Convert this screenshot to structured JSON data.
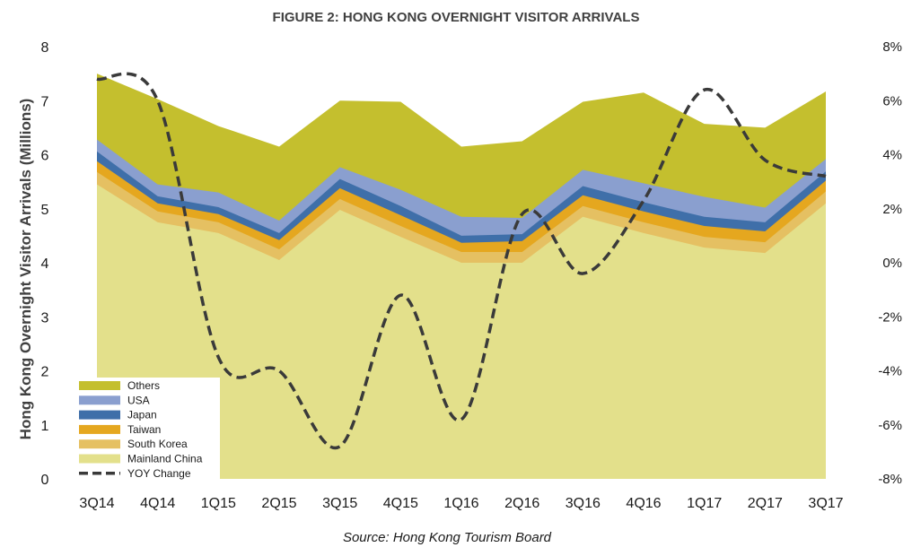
{
  "chart_data": {
    "type": "area",
    "title": "FIGURE 2: HONG KONG OVERNIGHT VISITOR ARRIVALS",
    "ylabel": "Hong Kong Overnight Visitor Arrivals (Millions)",
    "source": "Source: Hong Kong Tourism Board",
    "categories": [
      "3Q14",
      "4Q14",
      "1Q15",
      "2Q15",
      "3Q15",
      "4Q15",
      "1Q16",
      "2Q16",
      "3Q16",
      "4Q16",
      "1Q17",
      "2Q17",
      "3Q17"
    ],
    "ylim": [
      0,
      8
    ],
    "y_ticks": [
      "0",
      "1",
      "2",
      "3",
      "4",
      "5",
      "6",
      "7",
      "8"
    ],
    "y2lim": [
      -8,
      8
    ],
    "y2_ticks": [
      "-8%",
      "-6%",
      "-4%",
      "-2%",
      "0%",
      "2%",
      "4%",
      "6%",
      "8%"
    ],
    "stacking": "cumulative",
    "series": [
      {
        "name": "Mainland China",
        "color": "#e3e08b",
        "values": [
          5.45,
          4.75,
          4.55,
          4.05,
          4.98,
          4.48,
          4.0,
          4.0,
          4.85,
          4.55,
          4.28,
          4.18,
          5.1
        ]
      },
      {
        "name": "South Korea",
        "color": "#e5c062",
        "values": [
          0.23,
          0.2,
          0.2,
          0.2,
          0.2,
          0.2,
          0.2,
          0.2,
          0.2,
          0.2,
          0.2,
          0.2,
          0.22
        ]
      },
      {
        "name": "Taiwan",
        "color": "#e5a71f",
        "values": [
          0.2,
          0.15,
          0.15,
          0.17,
          0.2,
          0.2,
          0.17,
          0.2,
          0.2,
          0.2,
          0.2,
          0.2,
          0.2
        ]
      },
      {
        "name": "Japan",
        "color": "#3f6fa9",
        "values": [
          0.18,
          0.13,
          0.13,
          0.13,
          0.17,
          0.17,
          0.13,
          0.13,
          0.17,
          0.17,
          0.17,
          0.17,
          0.17
        ]
      },
      {
        "name": "USA",
        "color": "#8a9fcf",
        "values": [
          0.22,
          0.22,
          0.27,
          0.23,
          0.22,
          0.3,
          0.35,
          0.3,
          0.3,
          0.35,
          0.37,
          0.27,
          0.23
        ]
      },
      {
        "name": "Others",
        "color": "#c4bf2e",
        "values": [
          1.22,
          1.58,
          1.23,
          1.37,
          1.23,
          1.63,
          1.3,
          1.42,
          1.26,
          1.68,
          1.35,
          1.48,
          1.25
        ]
      }
    ],
    "line_series": {
      "name": "YOY Change",
      "color": "#3a3a3a",
      "axis": "right",
      "values": [
        6.8,
        6.0,
        -3.5,
        -4.0,
        -6.8,
        -1.2,
        -5.8,
        1.8,
        -0.4,
        2.3,
        6.4,
        3.8,
        3.2
      ]
    },
    "legend": {
      "placement": "bottom-left",
      "order": [
        "Others",
        "USA",
        "Japan",
        "Taiwan",
        "South Korea",
        "Mainland China",
        "YOY Change"
      ]
    },
    "grid": false
  }
}
